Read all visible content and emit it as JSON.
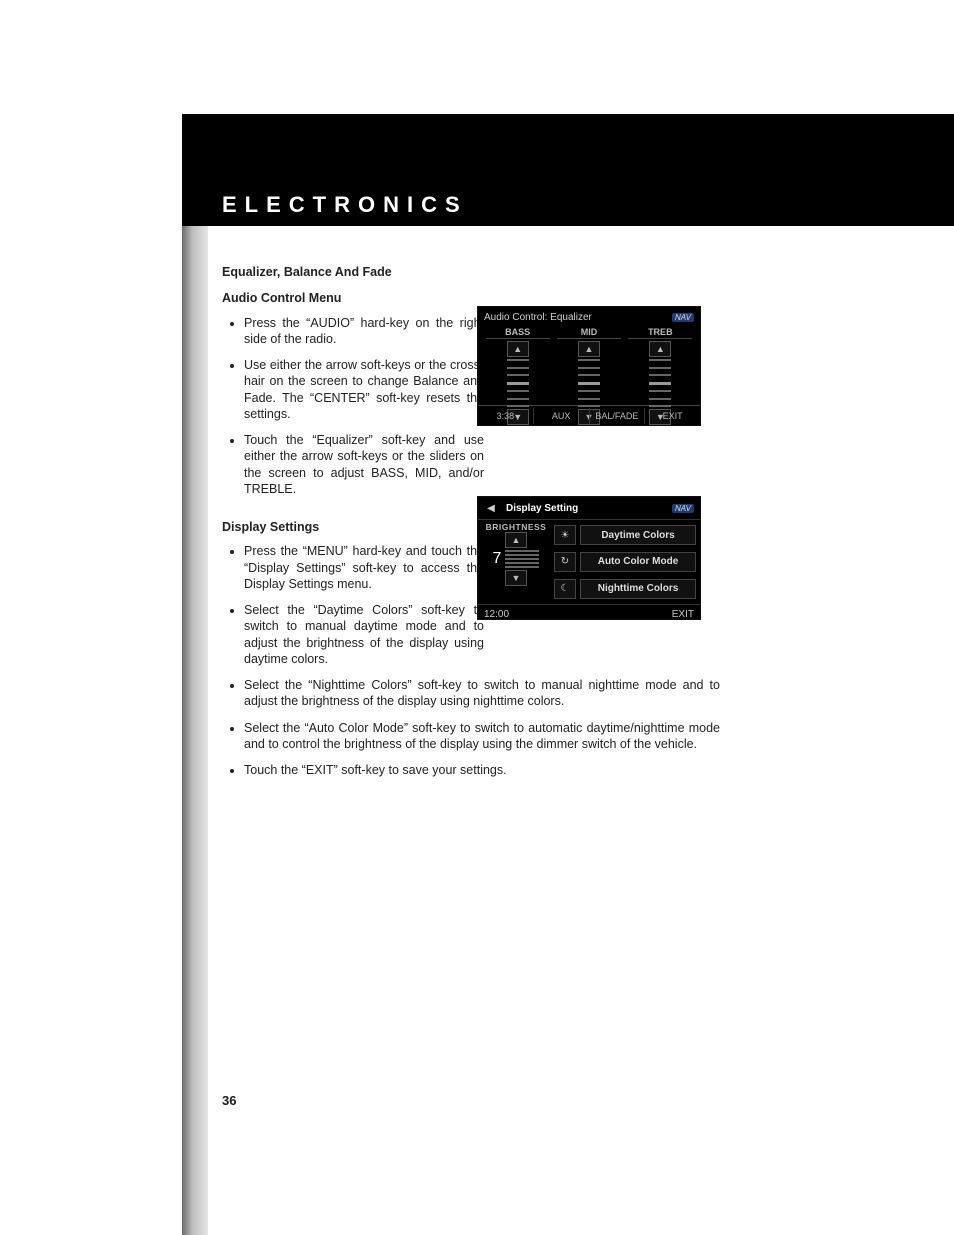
{
  "chapter_title": "ELECTRONICS",
  "page_number": "36",
  "section1_heading": "Equalizer, Balance And Fade",
  "section1_sub": "Audio Control Menu",
  "section1_bullets": [
    "Press the “AUDIO” hard-key on the right side of the radio.",
    "Use either the arrow soft-keys or the cross-hair on the screen to change Balance and Fade. The “CENTER” soft-key resets the settings.",
    "Touch the “Equalizer” soft-key and use either the arrow soft-keys or the sliders on the screen to adjust BASS, MID, and/or TREBLE."
  ],
  "section2_sub": "Display Settings",
  "section2_bullets_narrow": [
    "Press the “MENU” hard-key and touch the “Display Settings” soft-key to access the Display Settings menu.",
    "Select the “Daytime Colors” soft-key to switch to manual daytime mode and to adjust the brightness of the display using daytime colors."
  ],
  "section2_bullet_split": "Select the “Nighttime Colors” soft-key to switch to manual nighttime mode and to adjust the brightness of the display using nighttime colors.",
  "section2_bullets_wide": [
    "Select the “Auto Color Mode” soft-key to switch to automatic daytime/nighttime mode and to control the brightness of the display using the dimmer switch of the vehicle.",
    "Touch the “EXIT” soft-key to save your settings."
  ],
  "fig1": {
    "title": "Audio Control: Equalizer",
    "nav": "NAV",
    "cols": [
      "BASS",
      "MID",
      "TREB"
    ],
    "time": "3:38",
    "bottom": [
      "AUX",
      "BAL/FADE",
      "EXIT"
    ]
  },
  "fig2": {
    "title": "Display Setting",
    "nav": "NAV",
    "brightness_label": "BRIGHTNESS",
    "brightness_value": "7",
    "options": [
      "Daytime Colors",
      "Auto Color Mode",
      "Nighttime Colors"
    ],
    "option_icons": [
      "☀",
      "↻",
      "☾"
    ],
    "time": "12:00",
    "exit": "EXIT"
  },
  "colors": {
    "page_bg": "#ffffff",
    "header_bg": "#000000",
    "header_text": "#ffffff",
    "body_text": "#222222",
    "fig_bg": "#000000",
    "fig_text": "#cfcfcf"
  }
}
